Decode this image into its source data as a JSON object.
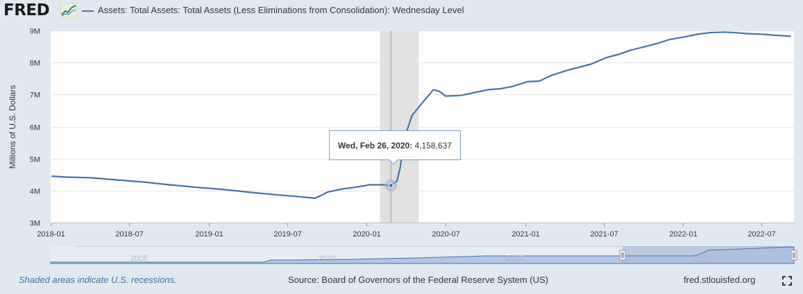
{
  "header": {
    "logo_text": "FRED",
    "series_label": "Assets: Total Assets: Total Assets (Less Eliminations from Consolidation): Wednesday Level"
  },
  "tooltip": {
    "date_label": "Wed, Feb 26, 2020:",
    "value_label": "4,158,637"
  },
  "navigator": {
    "year_labels": [
      "2005",
      "2010",
      "2015",
      "2020"
    ]
  },
  "footer": {
    "recession_note": "Shaded areas indicate U.S. recessions.",
    "source": "Source: Board of Governors of the Federal Reserve System (US)",
    "site": "fred.stlouisfed.org"
  },
  "colors": {
    "line": "#4572a7",
    "recession": "#e1e1e1",
    "background": "#e1e9f0",
    "plot": "#ffffff"
  },
  "chart_data": {
    "type": "line",
    "title": "",
    "xlabel": "",
    "ylabel": "Millions of U.S. Dollars",
    "ytick_labels": [
      "3M",
      "4M",
      "5M",
      "6M",
      "7M",
      "8M",
      "9M"
    ],
    "xtick_labels": [
      "2018-01",
      "2018-07",
      "2019-01",
      "2019-07",
      "2020-01",
      "2020-07",
      "2021-01",
      "2021-07",
      "2022-01",
      "2022-07"
    ],
    "xlim": [
      "2018-01-01",
      "2022-09-14"
    ],
    "ylim": [
      3000000,
      9000000
    ],
    "grid": true,
    "recession": [
      "2020-02-01",
      "2020-04-30"
    ],
    "highlight_point": {
      "x": "2020-02-26",
      "y": 4158637
    },
    "series": [
      {
        "name": "Assets: Total Assets: Total Assets (Less Eliminations from Consolidation): Wednesday Level",
        "x": [
          "2018-01-03",
          "2018-02-07",
          "2018-04-04",
          "2018-06-06",
          "2018-08-01",
          "2018-10-03",
          "2018-12-05",
          "2019-02-06",
          "2019-04-03",
          "2019-06-05",
          "2019-08-07",
          "2019-09-04",
          "2019-09-18",
          "2019-10-02",
          "2019-11-06",
          "2019-12-04",
          "2020-01-08",
          "2020-02-05",
          "2020-02-26",
          "2020-03-11",
          "2020-03-18",
          "2020-03-25",
          "2020-04-01",
          "2020-04-15",
          "2020-05-06",
          "2020-06-03",
          "2020-06-17",
          "2020-07-01",
          "2020-08-05",
          "2020-09-02",
          "2020-10-07",
          "2020-11-04",
          "2020-12-02",
          "2021-01-06",
          "2021-02-03",
          "2021-03-03",
          "2021-04-07",
          "2021-05-05",
          "2021-06-02",
          "2021-07-07",
          "2021-08-04",
          "2021-09-01",
          "2021-10-06",
          "2021-11-03",
          "2021-12-01",
          "2022-01-05",
          "2022-02-02",
          "2022-03-02",
          "2022-04-06",
          "2022-05-04",
          "2022-06-01",
          "2022-07-06",
          "2022-08-03",
          "2022-09-07"
        ],
        "y": [
          4450000,
          4420000,
          4400000,
          4330000,
          4270000,
          4180000,
          4100000,
          4030000,
          3950000,
          3870000,
          3800000,
          3760000,
          3850000,
          3950000,
          4050000,
          4100000,
          4180000,
          4180000,
          4158637,
          4300000,
          4700000,
          5300000,
          5800000,
          6350000,
          6700000,
          7150000,
          7100000,
          6950000,
          6970000,
          7050000,
          7150000,
          7180000,
          7250000,
          7400000,
          7420000,
          7600000,
          7750000,
          7850000,
          7950000,
          8150000,
          8250000,
          8380000,
          8500000,
          8600000,
          8720000,
          8800000,
          8880000,
          8930000,
          8950000,
          8930000,
          8900000,
          8880000,
          8850000,
          8820000
        ]
      }
    ]
  }
}
